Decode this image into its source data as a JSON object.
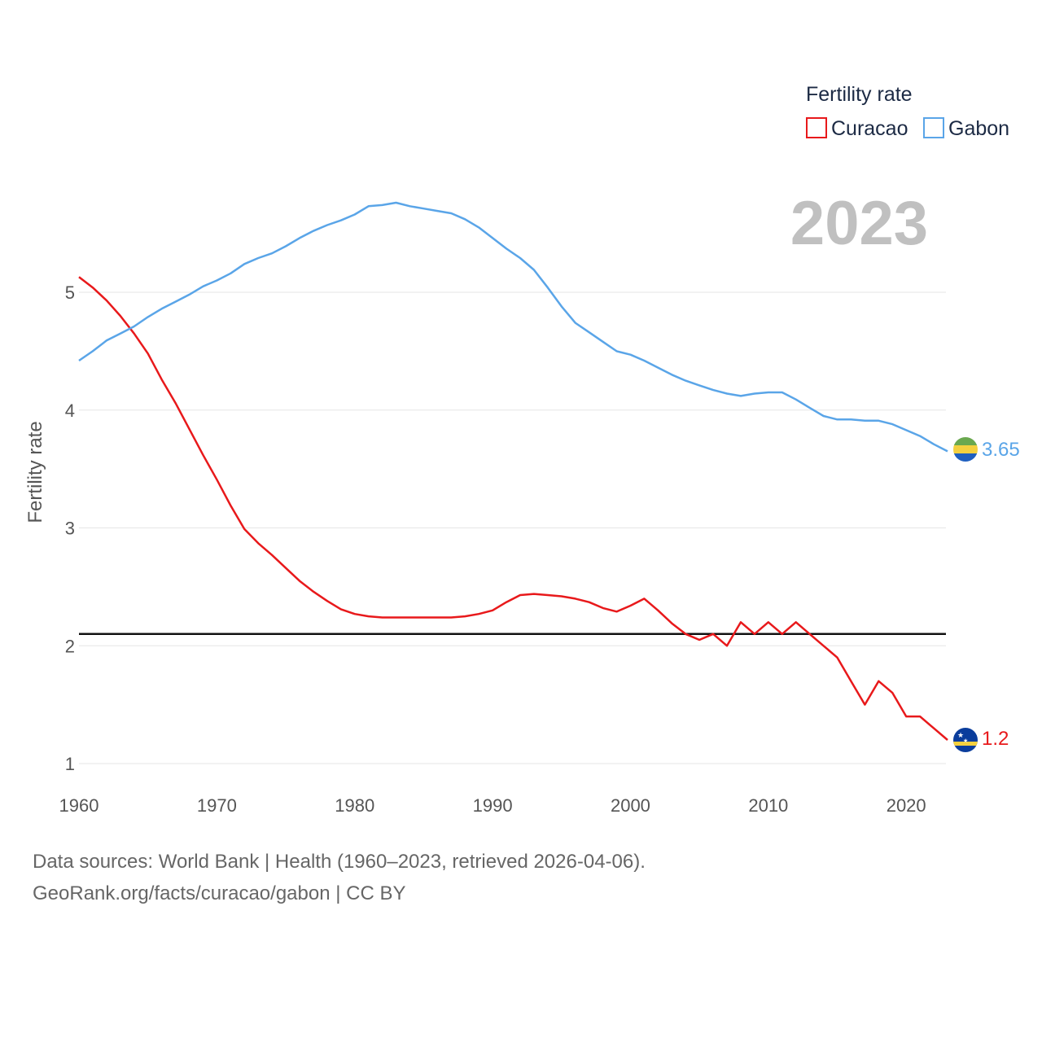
{
  "chart_data": {
    "type": "line",
    "title": "",
    "legend_title": "Fertility rate",
    "ylabel": "Fertility rate",
    "xlabel": "",
    "current_year_label": "2023",
    "xlim": [
      1960,
      2023
    ],
    "ylim": [
      0.9,
      5.9
    ],
    "x_ticks": [
      1960,
      1970,
      1980,
      1990,
      2000,
      2010,
      2020
    ],
    "y_ticks": [
      1,
      2,
      3,
      4,
      5
    ],
    "reference_line": {
      "value": 2.1
    },
    "legend_position": "top-right",
    "series": [
      {
        "name": "Curacao",
        "color": "#e8191b",
        "end_label": "1.2",
        "flag_icon": "curacao-flag-icon",
        "x": [
          1960,
          1961,
          1962,
          1963,
          1964,
          1965,
          1966,
          1967,
          1968,
          1969,
          1970,
          1971,
          1972,
          1973,
          1974,
          1975,
          1976,
          1977,
          1978,
          1979,
          1980,
          1981,
          1982,
          1983,
          1984,
          1985,
          1986,
          1987,
          1988,
          1989,
          1990,
          1991,
          1992,
          1993,
          1994,
          1995,
          1996,
          1997,
          1998,
          1999,
          2000,
          2001,
          2002,
          2003,
          2004,
          2005,
          2006,
          2007,
          2008,
          2009,
          2010,
          2011,
          2012,
          2013,
          2014,
          2015,
          2016,
          2017,
          2018,
          2019,
          2020,
          2021,
          2022,
          2023
        ],
        "values": [
          5.13,
          5.04,
          4.93,
          4.8,
          4.65,
          4.48,
          4.26,
          4.06,
          3.84,
          3.62,
          3.41,
          3.19,
          2.99,
          2.87,
          2.77,
          2.66,
          2.55,
          2.46,
          2.38,
          2.31,
          2.27,
          2.25,
          2.24,
          2.24,
          2.24,
          2.24,
          2.24,
          2.24,
          2.25,
          2.27,
          2.3,
          2.37,
          2.43,
          2.44,
          2.43,
          2.42,
          2.4,
          2.37,
          2.32,
          2.29,
          2.34,
          2.4,
          2.3,
          2.19,
          2.1,
          2.05,
          2.1,
          2.0,
          2.2,
          2.1,
          2.2,
          2.1,
          2.2,
          2.1,
          2.0,
          1.9,
          1.7,
          1.5,
          1.7,
          1.6,
          1.4,
          1.4,
          1.3,
          1.2
        ]
      },
      {
        "name": "Gabon",
        "color": "#5aa5e8",
        "end_label": "3.65",
        "flag_icon": "gabon-flag-icon",
        "x": [
          1960,
          1961,
          1962,
          1963,
          1964,
          1965,
          1966,
          1967,
          1968,
          1969,
          1970,
          1971,
          1972,
          1973,
          1974,
          1975,
          1976,
          1977,
          1978,
          1979,
          1980,
          1981,
          1982,
          1983,
          1984,
          1985,
          1986,
          1987,
          1988,
          1989,
          1990,
          1991,
          1992,
          1993,
          1994,
          1995,
          1996,
          1997,
          1998,
          1999,
          2000,
          2001,
          2002,
          2003,
          2004,
          2005,
          2006,
          2007,
          2008,
          2009,
          2010,
          2011,
          2012,
          2013,
          2014,
          2015,
          2016,
          2017,
          2018,
          2019,
          2020,
          2021,
          2022,
          2023
        ],
        "values": [
          4.42,
          4.5,
          4.59,
          4.65,
          4.71,
          4.79,
          4.86,
          4.92,
          4.98,
          5.05,
          5.1,
          5.16,
          5.24,
          5.29,
          5.33,
          5.39,
          5.46,
          5.52,
          5.57,
          5.61,
          5.66,
          5.73,
          5.74,
          5.76,
          5.73,
          5.71,
          5.69,
          5.67,
          5.62,
          5.55,
          5.46,
          5.37,
          5.29,
          5.19,
          5.04,
          4.88,
          4.74,
          4.66,
          4.58,
          4.5,
          4.47,
          4.42,
          4.36,
          4.3,
          4.25,
          4.21,
          4.17,
          4.14,
          4.12,
          4.14,
          4.15,
          4.15,
          4.09,
          4.02,
          3.95,
          3.92,
          3.92,
          3.91,
          3.91,
          3.88,
          3.83,
          3.78,
          3.71,
          3.65
        ]
      }
    ]
  },
  "footer": {
    "source_line": "Data sources: World Bank | Health (1960–2023, retrieved 2026-04-06).",
    "credit_line": "GeoRank.org/facts/curacao/gabon | CC BY"
  }
}
